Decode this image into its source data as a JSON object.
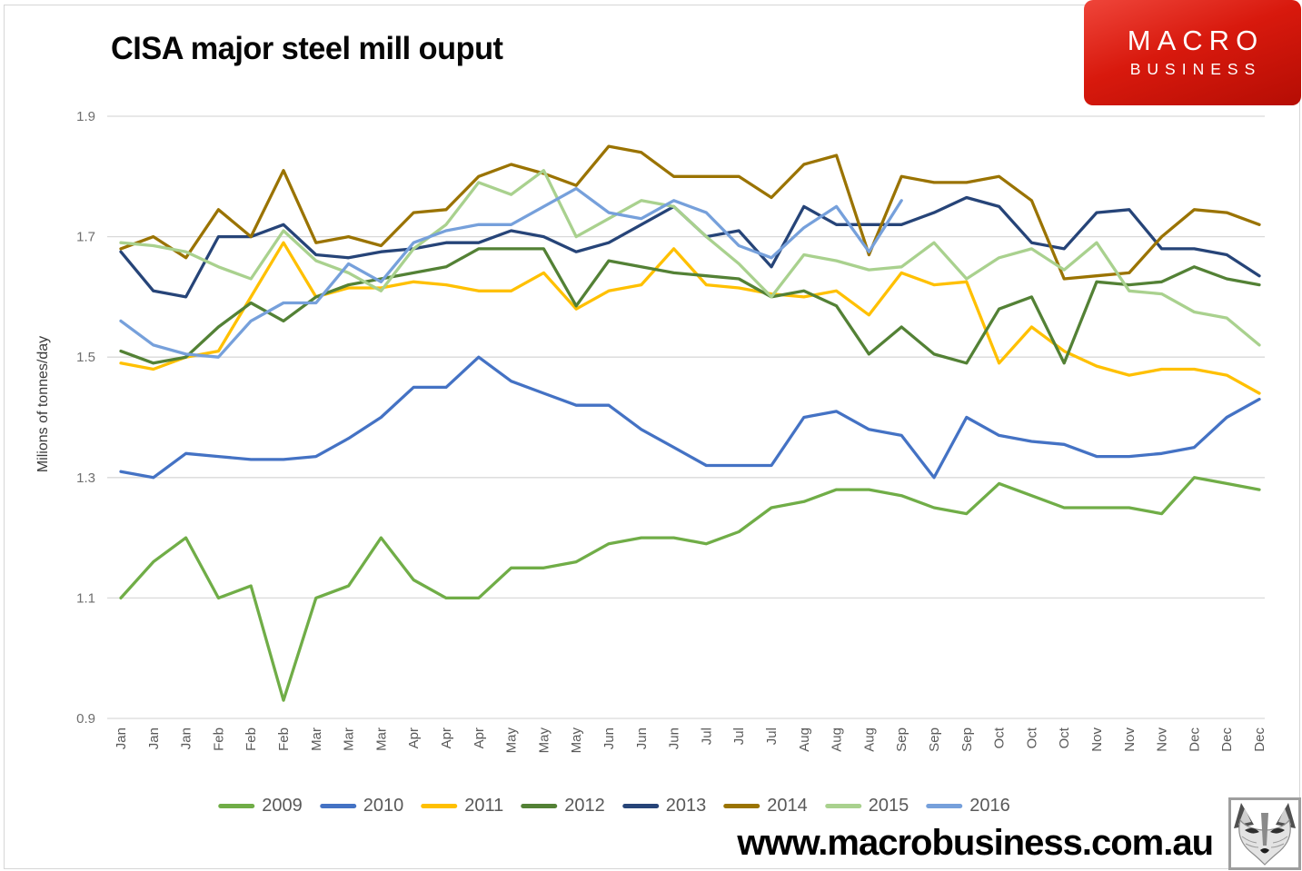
{
  "page": {
    "title": "CISA major steel mill ouput",
    "footer_url": "www.macrobusiness.com.au",
    "logo": {
      "line1": "MACRO",
      "line2": "BUSINESS",
      "bg_color": "#cb1309",
      "text_color": "#ffffff"
    },
    "wolf_image": "fox-pencil-sketch"
  },
  "chart_data": {
    "type": "line",
    "title": "CISA major steel mill ouput",
    "xlabel": "",
    "ylabel": "Milions of tonnes/day",
    "ylim": [
      0.9,
      1.9
    ],
    "yticks": [
      0.9,
      1.1,
      1.3,
      1.5,
      1.7,
      1.9
    ],
    "grid": true,
    "grid_color": "#d9d9d9",
    "tick_label_color": "#595959",
    "legend_position": "bottom",
    "x_note": "three readings per month (10-day CISA periods)",
    "categories": [
      "Jan",
      "Jan",
      "Jan",
      "Feb",
      "Feb",
      "Feb",
      "Mar",
      "Mar",
      "Mar",
      "Apr",
      "Apr",
      "Apr",
      "May",
      "May",
      "May",
      "Jun",
      "Jun",
      "Jun",
      "Jul",
      "Jul",
      "Jul",
      "Aug",
      "Aug",
      "Aug",
      "Sep",
      "Sep",
      "Sep",
      "Oct",
      "Oct",
      "Oct",
      "Nov",
      "Nov",
      "Nov",
      "Dec",
      "Dec",
      "Dec"
    ],
    "series": [
      {
        "name": "2009",
        "color": "#70AD47",
        "values": [
          1.1,
          1.16,
          1.2,
          1.1,
          1.12,
          0.93,
          1.1,
          1.12,
          1.2,
          1.13,
          1.1,
          1.1,
          1.15,
          1.15,
          1.16,
          1.19,
          1.2,
          1.2,
          1.19,
          1.21,
          1.25,
          1.26,
          1.28,
          1.28,
          1.27,
          1.25,
          1.24,
          1.29,
          1.27,
          1.25,
          1.25,
          1.25,
          1.24,
          1.3,
          1.29,
          1.28
        ]
      },
      {
        "name": "2010",
        "color": "#4472C4",
        "values": [
          1.31,
          1.3,
          1.34,
          1.335,
          1.33,
          1.33,
          1.335,
          1.365,
          1.4,
          1.45,
          1.45,
          1.5,
          1.46,
          1.44,
          1.42,
          1.42,
          1.38,
          1.35,
          1.32,
          1.32,
          1.32,
          1.4,
          1.41,
          1.38,
          1.37,
          1.3,
          1.4,
          1.37,
          1.36,
          1.355,
          1.335,
          1.335,
          1.34,
          1.35,
          1.4,
          1.43
        ]
      },
      {
        "name": "2011",
        "color": "#FFC000",
        "values": [
          1.49,
          1.48,
          1.5,
          1.51,
          1.6,
          1.69,
          1.6,
          1.615,
          1.615,
          1.625,
          1.62,
          1.61,
          1.61,
          1.64,
          1.58,
          1.61,
          1.62,
          1.68,
          1.62,
          1.615,
          1.605,
          1.6,
          1.61,
          1.57,
          1.64,
          1.62,
          1.625,
          1.49,
          1.55,
          1.51,
          1.485,
          1.47,
          1.48,
          1.48,
          1.47,
          1.44
        ]
      },
      {
        "name": "2012",
        "color": "#538135",
        "values": [
          1.51,
          1.49,
          1.5,
          1.55,
          1.59,
          1.56,
          1.6,
          1.62,
          1.63,
          1.64,
          1.65,
          1.68,
          1.68,
          1.68,
          1.585,
          1.66,
          1.65,
          1.64,
          1.635,
          1.63,
          1.6,
          1.61,
          1.585,
          1.505,
          1.55,
          1.505,
          1.49,
          1.58,
          1.6,
          1.49,
          1.625,
          1.62,
          1.625,
          1.65,
          1.63,
          1.62
        ]
      },
      {
        "name": "2013",
        "color": "#264478",
        "values": [
          1.675,
          1.61,
          1.6,
          1.7,
          1.7,
          1.72,
          1.67,
          1.665,
          1.675,
          1.68,
          1.69,
          1.69,
          1.71,
          1.7,
          1.675,
          1.69,
          1.72,
          1.75,
          1.7,
          1.71,
          1.65,
          1.75,
          1.72,
          1.72,
          1.72,
          1.74,
          1.765,
          1.75,
          1.69,
          1.68,
          1.74,
          1.745,
          1.68,
          1.68,
          1.67,
          1.635
        ]
      },
      {
        "name": "2014",
        "color": "#9A7300",
        "values": [
          1.68,
          1.7,
          1.665,
          1.745,
          1.7,
          1.81,
          1.69,
          1.7,
          1.685,
          1.74,
          1.745,
          1.8,
          1.82,
          1.805,
          1.785,
          1.85,
          1.84,
          1.8,
          1.8,
          1.8,
          1.765,
          1.82,
          1.835,
          1.67,
          1.8,
          1.79,
          1.79,
          1.8,
          1.76,
          1.63,
          1.635,
          1.64,
          1.7,
          1.745,
          1.74,
          1.72
        ]
      },
      {
        "name": "2015",
        "color": "#A9D18E",
        "values": [
          1.69,
          1.685,
          1.675,
          1.65,
          1.63,
          1.71,
          1.66,
          1.64,
          1.61,
          1.68,
          1.72,
          1.79,
          1.77,
          1.81,
          1.7,
          1.73,
          1.76,
          1.75,
          1.7,
          1.655,
          1.6,
          1.67,
          1.66,
          1.645,
          1.65,
          1.69,
          1.63,
          1.665,
          1.68,
          1.645,
          1.69,
          1.61,
          1.605,
          1.575,
          1.565,
          1.52
        ]
      },
      {
        "name": "2016",
        "color": "#76A0DB",
        "values": [
          1.56,
          1.52,
          1.505,
          1.5,
          1.56,
          1.59,
          1.59,
          1.655,
          1.625,
          1.69,
          1.71,
          1.72,
          1.72,
          1.75,
          1.78,
          1.74,
          1.73,
          1.76,
          1.74,
          1.685,
          1.665,
          1.715,
          1.75,
          1.675,
          1.76
        ]
      }
    ]
  }
}
